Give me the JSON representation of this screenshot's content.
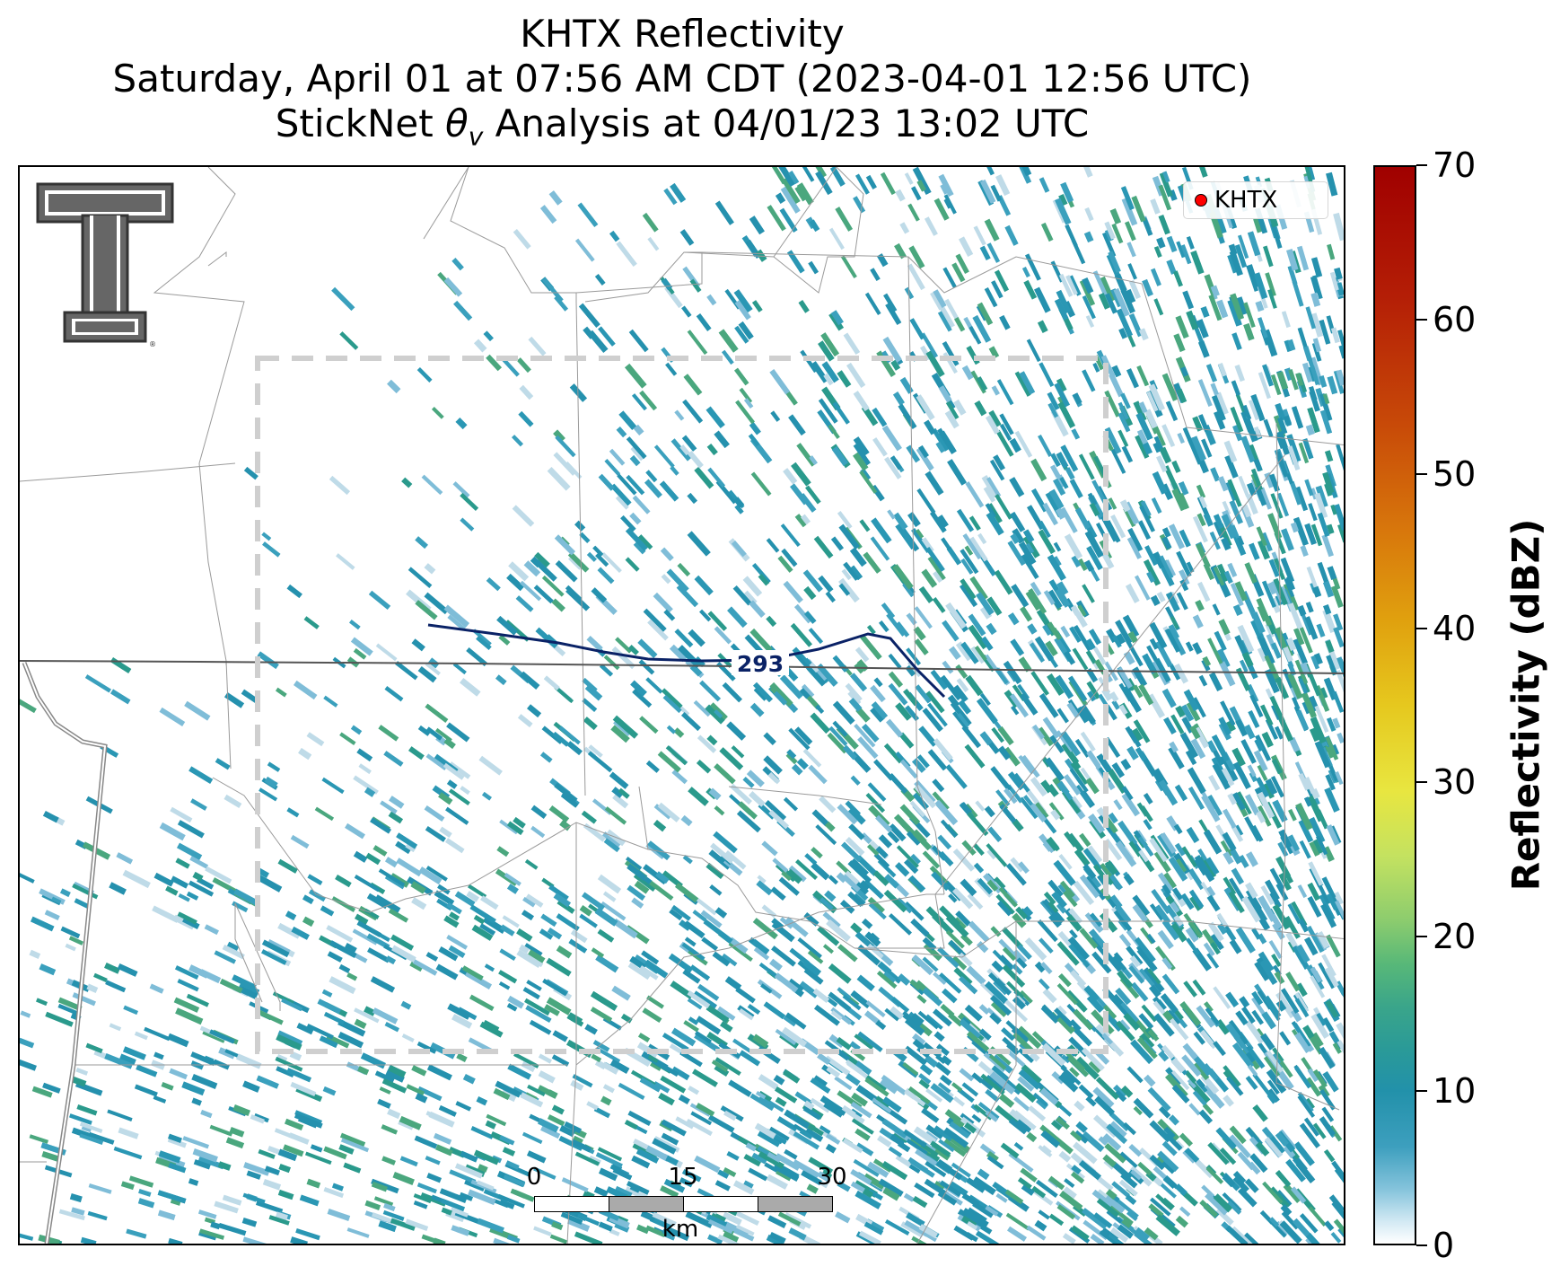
{
  "title": {
    "line1": "KHTX Reflectivity",
    "line2": "Saturday, April 01 at 07:56 AM CDT (2023-04-01 12:56 UTC)",
    "line3_prefix": "StickNet ",
    "line3_symbol": "θ",
    "line3_subscript": "v",
    "line3_suffix": " Analysis at 04/01/23 13:02 UTC"
  },
  "legend": {
    "marker_label": "KHTX",
    "marker_color": "#ff0000"
  },
  "contour": {
    "label": "293",
    "color": "#0a2266"
  },
  "scale_bar": {
    "ticks": [
      "0",
      "15",
      "30"
    ],
    "unit": "km"
  },
  "colorbar": {
    "label": "Reflectivity (dBZ)",
    "min": 0,
    "max": 70,
    "tick_labels": [
      "0",
      "10",
      "20",
      "30",
      "40",
      "50",
      "60",
      "70"
    ]
  },
  "logo": {
    "name": "Texas Tech double-T logo"
  },
  "colors": {
    "echo_primary": "#2591ae",
    "echo_light": "#7fbdd8",
    "analysis_box": "#cccccc",
    "boundaries": "#999999"
  }
}
